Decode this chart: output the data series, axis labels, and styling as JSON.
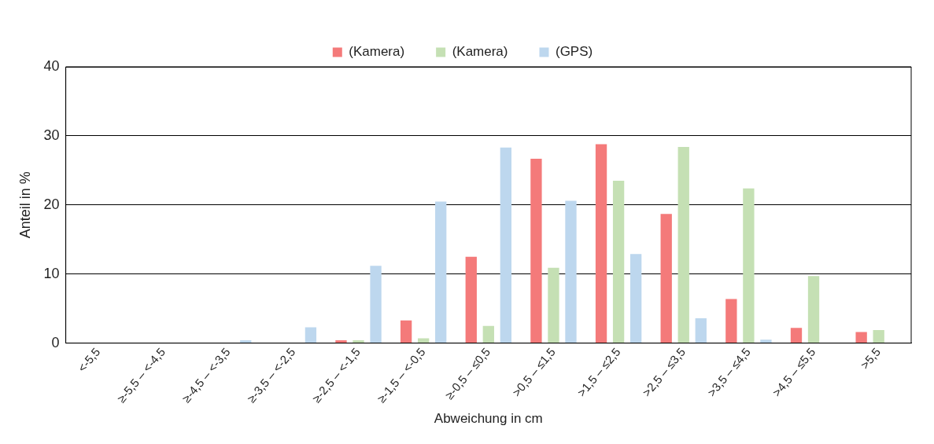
{
  "chart_data": {
    "type": "bar",
    "xlabel": "Abweichung in cm",
    "ylabel": "Anteil in %",
    "categories": [
      "<-5,5",
      "≥-5,5 – <-4,5",
      "≥-4,5 – <-3,5",
      "≥-3,5 – <-2,5",
      "≥-2,5 – <-1,5",
      "≥-1,5 – <-0,5",
      "≥-0,5 – ≤0,5",
      ">0,5 – ≤1,5",
      ">1,5 – ≤2,5",
      ">2,5 – ≤3,5",
      ">3,5 – ≤4,5",
      ">4,5 – ≤5,5",
      ">5,5"
    ],
    "series": [
      {
        "name": "(Kamera)",
        "color": "#f47a7a",
        "values": [
          0,
          0,
          0,
          0,
          0.4,
          3.3,
          12.5,
          26.7,
          28.8,
          18.7,
          6.4,
          2.2,
          1.6
        ]
      },
      {
        "name": "(Kamera)",
        "color": "#c5e0b4",
        "values": [
          0,
          0,
          0,
          0,
          0.4,
          0.7,
          2.5,
          10.9,
          23.5,
          28.4,
          22.4,
          9.7,
          1.9
        ]
      },
      {
        "name": "(GPS)",
        "color": "#bdd7ee",
        "values": [
          0,
          0,
          0.4,
          2.3,
          11.2,
          20.5,
          28.3,
          20.6,
          12.9,
          3.6,
          0.5,
          null,
          0
        ]
      }
    ],
    "ylim": [
      0,
      40
    ],
    "yticks": [
      0,
      10,
      20,
      30,
      40
    ],
    "grid": "y",
    "legend": "top"
  }
}
